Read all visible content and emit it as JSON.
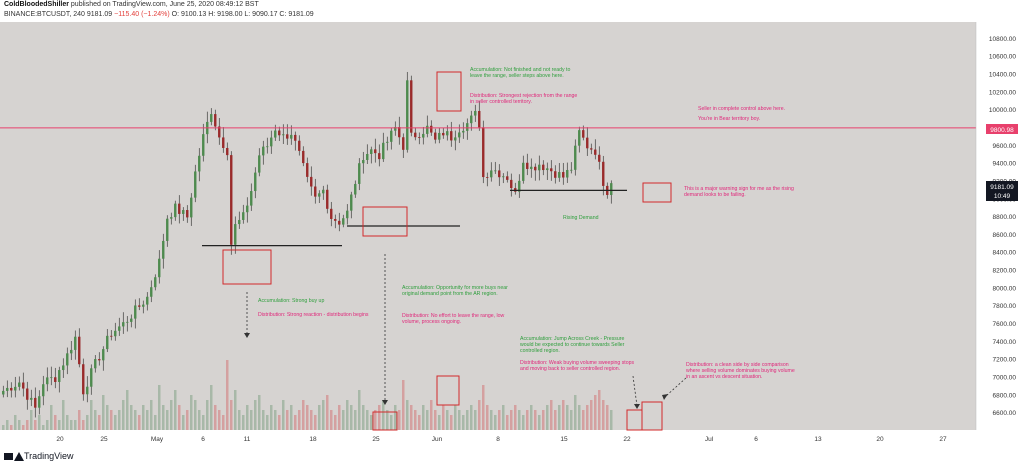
{
  "header": {
    "author": "ColdBloodedShiller",
    "published": "published on TradingView.com, June 25, 2020 08:49:12 BST",
    "symbol": "BINANCE:BTCUSDT, 240",
    "last": "9181.09",
    "change": "−115.40 (−1.24%)",
    "ohlc": "O: 9100.13  H: 9198.00  L: 9090.17  C: 9181.09"
  },
  "footer": {
    "brand": "TradingView"
  },
  "colors": {
    "background": "#d6d3d1",
    "up": "#4e8a4e",
    "down": "#9a2a2a",
    "resistance": "#e8406c",
    "support": "#222222",
    "box": "#d22a2a",
    "green_text": "#2e9e3c",
    "pink_text": "#e0277a",
    "price_tag_bg": "#131722"
  },
  "chart_data": {
    "type": "candlestick",
    "ylim": [
      6500,
      10900
    ],
    "yticks": [
      6600,
      6800,
      7000,
      7200,
      7400,
      7600,
      7800,
      8000,
      8200,
      8400,
      8600,
      8800,
      9000,
      9200,
      9400,
      9600,
      9800,
      10000,
      10200,
      10400,
      10600,
      10800
    ],
    "xticks": [
      "20",
      "25",
      "May",
      "6",
      "11",
      "18",
      "25",
      "Jun",
      "8",
      "15",
      "22",
      "Jul",
      "6",
      "13",
      "20",
      "27"
    ],
    "price_path": [
      [
        0,
        6850
      ],
      [
        4,
        6950
      ],
      [
        8,
        6650
      ],
      [
        10,
        6950
      ],
      [
        13,
        7000
      ],
      [
        16,
        7250
      ],
      [
        18,
        7450
      ],
      [
        20,
        6850
      ],
      [
        23,
        7150
      ],
      [
        27,
        7500
      ],
      [
        30,
        7600
      ],
      [
        33,
        7750
      ],
      [
        36,
        7900
      ],
      [
        39,
        8300
      ],
      [
        41,
        8800
      ],
      [
        43,
        8900
      ],
      [
        46,
        8800
      ],
      [
        48,
        9300
      ],
      [
        50,
        9700
      ],
      [
        52,
        10000
      ],
      [
        54,
        9700
      ],
      [
        56,
        9550
      ],
      [
        57,
        8500
      ],
      [
        58,
        8700
      ],
      [
        60,
        8800
      ],
      [
        62,
        9100
      ],
      [
        64,
        9500
      ],
      [
        66,
        9600
      ],
      [
        68,
        9800
      ],
      [
        70,
        9700
      ],
      [
        72,
        9750
      ],
      [
        74,
        9500
      ],
      [
        76,
        9200
      ],
      [
        78,
        9000
      ],
      [
        80,
        9100
      ],
      [
        82,
        8800
      ],
      [
        84,
        8750
      ],
      [
        86,
        8850
      ],
      [
        88,
        9200
      ],
      [
        90,
        9500
      ],
      [
        92,
        9550
      ],
      [
        94,
        9500
      ],
      [
        96,
        9650
      ],
      [
        98,
        9800
      ],
      [
        100,
        9600
      ],
      [
        101,
        10300
      ],
      [
        102,
        9700
      ],
      [
        104,
        9750
      ],
      [
        106,
        9800
      ],
      [
        108,
        9650
      ],
      [
        110,
        9750
      ],
      [
        112,
        9700
      ],
      [
        114,
        9800
      ],
      [
        116,
        9850
      ],
      [
        118,
        9950
      ],
      [
        119,
        9850
      ],
      [
        120,
        9250
      ],
      [
        122,
        9350
      ],
      [
        124,
        9300
      ],
      [
        126,
        9250
      ],
      [
        128,
        9050
      ],
      [
        130,
        9450
      ],
      [
        132,
        9350
      ],
      [
        134,
        9400
      ],
      [
        136,
        9350
      ],
      [
        138,
        9300
      ],
      [
        140,
        9250
      ],
      [
        142,
        9350
      ],
      [
        144,
        9750
      ],
      [
        146,
        9600
      ],
      [
        148,
        9550
      ],
      [
        150,
        9200
      ],
      [
        151,
        9100
      ],
      [
        152,
        9181
      ]
    ],
    "volume_series": [
      1,
      2,
      1,
      3,
      2,
      1,
      2,
      4,
      2,
      3,
      1,
      2,
      5,
      3,
      2,
      6,
      3,
      2,
      2,
      4,
      2,
      3,
      6,
      4,
      3,
      7,
      5,
      4,
      3,
      4,
      6,
      8,
      5,
      4,
      3,
      5,
      4,
      6,
      3,
      9,
      5,
      4,
      6,
      8,
      5,
      3,
      4,
      7,
      6,
      4,
      3,
      6,
      9,
      5,
      4,
      3,
      14,
      6,
      8,
      4,
      3,
      5,
      4,
      6,
      7,
      4,
      3,
      5,
      4,
      3,
      6,
      4,
      5,
      3,
      4,
      6,
      5,
      4,
      3,
      5,
      6,
      7,
      4,
      3,
      5,
      4,
      6,
      5,
      4,
      8,
      5,
      4,
      3,
      4,
      5,
      6,
      4,
      3,
      5,
      4,
      10,
      6,
      5,
      4,
      3,
      5,
      4,
      6,
      4,
      3,
      5,
      4,
      3,
      5,
      4,
      3,
      4,
      5,
      4,
      6,
      9,
      5,
      4,
      3,
      4,
      5,
      3,
      4,
      5,
      4,
      3,
      4,
      5,
      4,
      3,
      4,
      5,
      6,
      4,
      5,
      6,
      5,
      4,
      7,
      5,
      4,
      5,
      6,
      7,
      8,
      6,
      5,
      4
    ],
    "horizontal_lines": [
      {
        "name": "resistance",
        "price": 9800.98,
        "label": "9800.98"
      },
      {
        "name": "support-may",
        "price": 8480
      },
      {
        "name": "support-may25",
        "price": 8700
      },
      {
        "name": "support-jun",
        "price": 9100
      }
    ],
    "last_price_tag": {
      "price": "9181.09",
      "countdown": "10:49"
    },
    "annotations": [
      {
        "color": "green",
        "text": [
          "Accumulation: Not finished and not ready to",
          "leave the range, seller steps above here."
        ]
      },
      {
        "color": "pink",
        "text": [
          "Distribution: Strongest rejection from the range",
          "in seller controlled territory."
        ]
      },
      {
        "color": "pink",
        "text": [
          "Seller in complete control above here."
        ]
      },
      {
        "color": "pink",
        "text": [
          "You're in Bear territory boy."
        ]
      },
      {
        "color": "pink",
        "text": [
          "This is a major warning sign for me as the rising",
          "demand looks to be failing."
        ]
      },
      {
        "color": "green",
        "text": [
          "Rising Demand"
        ]
      },
      {
        "color": "green",
        "text": [
          "Accumulation: Strong buy up"
        ]
      },
      {
        "color": "pink",
        "text": [
          "Distribution: Strong reaction - distribution begins"
        ]
      },
      {
        "color": "green",
        "text": [
          "Accumulation: Opportunity for more buys near",
          "original demand point from the AR region."
        ]
      },
      {
        "color": "pink",
        "text": [
          "Distribution: No effort to leave the range, low",
          "volume, process ongoing."
        ]
      },
      {
        "color": "green",
        "text": [
          "Accumulation: Jump Across Creek - Pressure",
          "would be expected to continue towards Seller",
          "controlled region."
        ]
      },
      {
        "color": "pink",
        "text": [
          "Distribution: Weak buying volume sweeping stops",
          "and moving back to seller controlled region."
        ]
      },
      {
        "color": "pink",
        "text": [
          "Distribution: a clean side by side comparison",
          "where selling volume dominates buying volume",
          "in an ascent vs descent situation."
        ]
      }
    ]
  }
}
